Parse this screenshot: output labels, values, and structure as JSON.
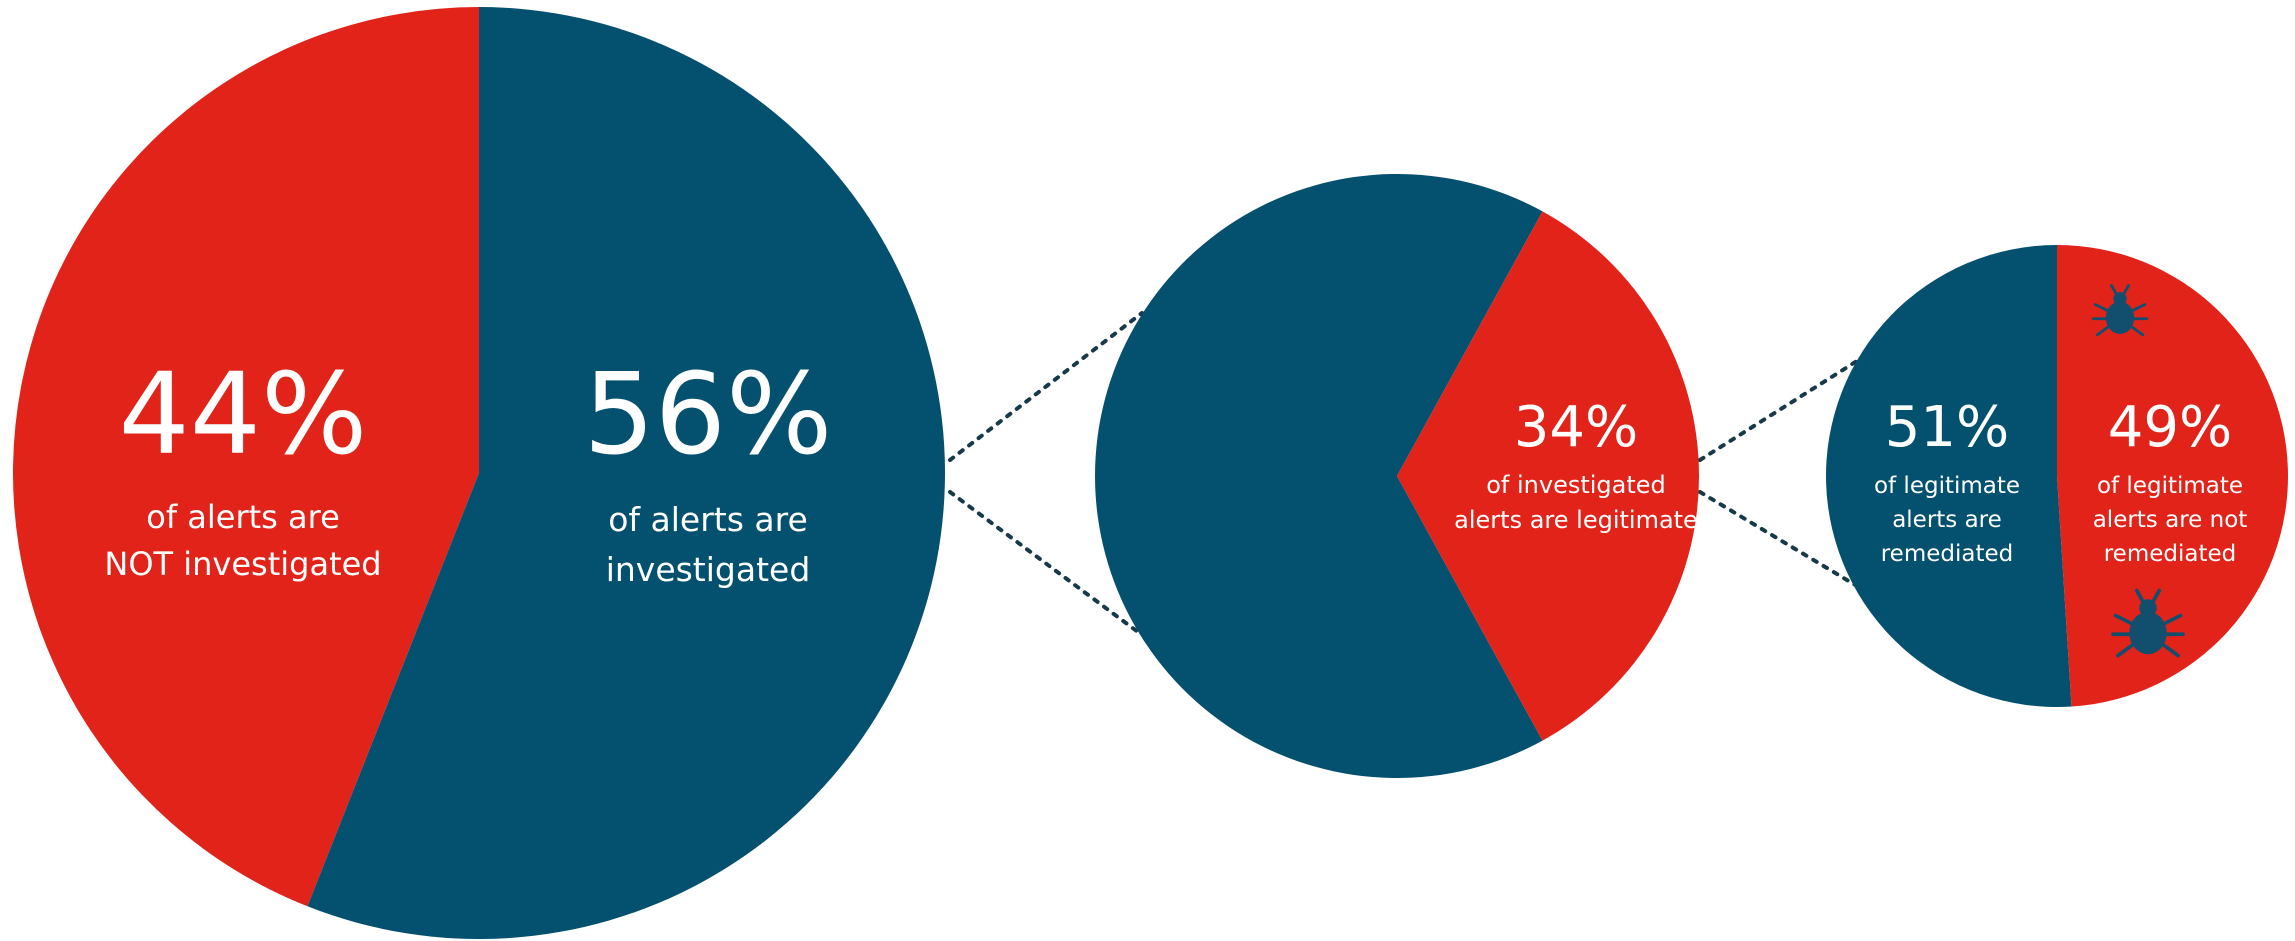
{
  "colors": {
    "blue": "#04506f",
    "red": "#e2231a",
    "connector": "#163a4a",
    "bug": "#124f6e"
  },
  "chart_data": [
    {
      "type": "pie",
      "slices": [
        {
          "key": "not_investigated",
          "value": 44,
          "percent": "44%",
          "caption1": "of alerts are",
          "caption2": "NOT investigated",
          "color": "#e2231a"
        },
        {
          "key": "investigated",
          "value": 56,
          "percent": "56%",
          "caption1": "of alerts are",
          "caption2": "investigated",
          "color": "#04506f"
        }
      ]
    },
    {
      "type": "pie",
      "slices": [
        {
          "key": "legitimate",
          "value": 34,
          "percent": "34%",
          "caption1": "of investigated",
          "caption2": "alerts are legitimate",
          "color": "#e2231a"
        },
        {
          "key": "not_legitimate",
          "value": 66,
          "color": "#04506f"
        }
      ]
    },
    {
      "type": "pie",
      "slices": [
        {
          "key": "remediated",
          "value": 51,
          "percent": "51%",
          "caption1": "of legitimate",
          "caption2": "alerts are",
          "caption3": "remediated",
          "color": "#04506f"
        },
        {
          "key": "not_remediated",
          "value": 49,
          "percent": "49%",
          "caption1": "of legitimate",
          "caption2": "alerts are not",
          "caption3": "remediated",
          "color": "#e2231a"
        }
      ]
    }
  ]
}
